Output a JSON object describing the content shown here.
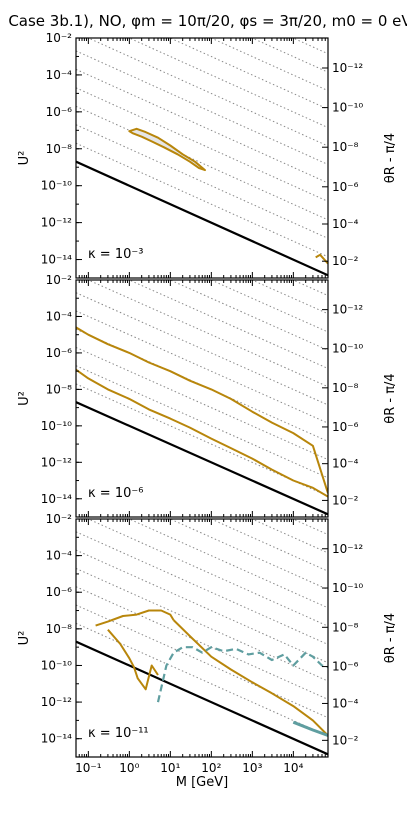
{
  "chart_data": {
    "type": "line",
    "title": "Case 3b.1), NO, φm = 10π/20, φs = 3π/20, m0 = 0 eV",
    "xlabel": "M [GeV]",
    "ylabel": "U²",
    "y2label": "θR - π/4",
    "xscale": "log",
    "yscale": "log",
    "xlim": [
      0.05,
      70000
    ],
    "ylim": [
      1e-15,
      0.01
    ],
    "x_ticks": [
      "10⁻¹",
      "10⁰",
      "10¹",
      "10²",
      "10³",
      "10⁴"
    ],
    "y_ticks": [
      "10⁻¹⁴",
      "10⁻¹²",
      "10⁻¹⁰",
      "10⁻⁸",
      "10⁻⁶",
      "10⁻⁴",
      "10⁻²"
    ],
    "y2_ticks": [
      "10⁻²",
      "10⁻⁴",
      "10⁻⁶",
      "10⁻⁸",
      "10⁻¹⁰",
      "10⁻¹²"
    ],
    "colors": {
      "gold": "#b8860b",
      "teal": "#5f9ea0",
      "black": "#000000",
      "grid": "#888888",
      "fill": "#e6e6e6"
    },
    "panels": [
      {
        "kappa_label": "κ = 10⁻³",
        "seesaw_line": [
          [
            0.05,
            2e-09
          ],
          [
            70000,
            1.4e-15
          ]
        ],
        "series": [
          {
            "style": "gold-closed-filled",
            "x": [
              1.0,
              1.5,
              2.5,
              5,
              10,
              20,
              40,
              70,
              50,
              30,
              15,
              7,
              3.5,
              2,
              1.2,
              1.0
            ],
            "y": [
              9e-08,
              1.2e-07,
              8e-08,
              4e-08,
              1.5e-08,
              5e-09,
              2e-09,
              7e-10,
              9e-10,
              2e-09,
              5e-09,
              1.2e-08,
              2.5e-08,
              4.5e-08,
              7e-08,
              9e-08
            ]
          },
          {
            "style": "gold-open",
            "x": [
              35000,
              45000,
              55000,
              70000
            ],
            "y": [
              1.3e-14,
              1.8e-14,
              1.1e-14,
              6e-15
            ]
          }
        ]
      },
      {
        "kappa_label": "κ = 10⁻⁶",
        "seesaw_line": [
          [
            0.05,
            2e-09
          ],
          [
            70000,
            1.4e-15
          ]
        ],
        "series": [
          {
            "style": "gold-open",
            "x": [
              0.05,
              0.1,
              0.3,
              1,
              3,
              10,
              30,
              100,
              300,
              1000,
              3000,
              10000,
              30000,
              70000
            ],
            "y": [
              2.5e-05,
              1e-05,
              3e-06,
              1e-06,
              3e-07,
              1e-07,
              3e-08,
              1e-08,
              3e-09,
              6e-10,
              1.5e-10,
              4e-11,
              8e-12,
              2e-14
            ]
          },
          {
            "style": "gold-open",
            "x": [
              0.05,
              0.1,
              0.3,
              1,
              3,
              10,
              30,
              100,
              300,
              1000,
              3000,
              10000,
              30000,
              70000
            ],
            "y": [
              1.2e-07,
              4e-08,
              1e-08,
              3e-09,
              8e-10,
              2.5e-10,
              8e-11,
              2e-11,
              6e-12,
              1.6e-12,
              4e-13,
              1e-13,
              4e-14,
              1.3e-14
            ]
          }
        ]
      },
      {
        "kappa_label": "κ = 10⁻¹¹",
        "seesaw_line": [
          [
            0.05,
            2e-09
          ],
          [
            70000,
            1.4e-15
          ]
        ],
        "series": [
          {
            "style": "gold-open",
            "x": [
              0.15,
              0.3,
              0.7,
              1.5,
              3,
              6,
              10,
              12
            ],
            "y": [
              1.5e-08,
              2.5e-08,
              5e-08,
              6e-08,
              1e-07,
              1e-07,
              6e-08,
              3e-08
            ]
          },
          {
            "style": "gold-open",
            "x": [
              0.3,
              0.6,
              1.0,
              1.3,
              1.6,
              2.5,
              3.5,
              5
            ],
            "y": [
              9e-09,
              1.5e-09,
              2.5e-10,
              8e-11,
              2e-11,
              5e-12,
              1e-10,
              3e-11
            ]
          },
          {
            "style": "gold-open",
            "x": [
              12,
              30,
              100,
              300,
              1000,
              3000,
              10000,
              30000,
              70000
            ],
            "y": [
              3e-08,
              4e-09,
              3e-10,
              6e-11,
              1.2e-11,
              3e-12,
              6e-13,
              1e-13,
              1.5e-14
            ]
          },
          {
            "style": "teal-dashed",
            "x": [
              5,
              8,
              12,
              20,
              35,
              60,
              100,
              200,
              400,
              800,
              1500,
              3000,
              6000,
              10000,
              20000,
              30000,
              50000,
              70000
            ],
            "y": [
              1e-12,
              1e-10,
              5e-10,
              1e-09,
              1e-09,
              5e-10,
              1e-09,
              6e-10,
              8e-10,
              4e-10,
              5e-10,
              2e-10,
              4e-10,
              1e-10,
              5e-10,
              3e-10,
              1e-10,
              8e-11
            ]
          },
          {
            "style": "teal-solid",
            "x": [
              10000,
              30000,
              70000
            ],
            "y": [
              8e-14,
              3e-14,
              1.5e-14
            ]
          }
        ]
      }
    ]
  }
}
